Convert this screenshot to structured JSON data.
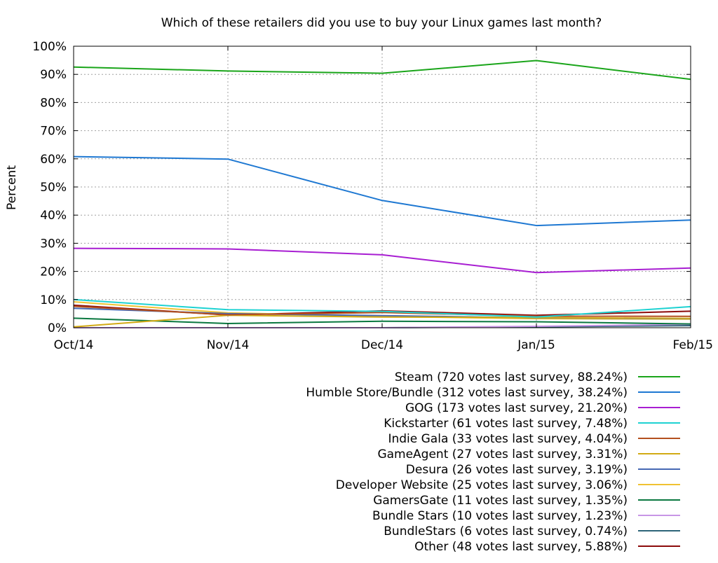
{
  "chart_data": {
    "type": "line",
    "title": "Which of these retailers did you use to buy your Linux games last month?",
    "xlabel": "",
    "ylabel": "Percent",
    "x": [
      "Oct/14",
      "Nov/14",
      "Dec/14",
      "Jan/15",
      "Feb/15"
    ],
    "ylim": [
      0,
      100
    ],
    "yticks": [
      "0%",
      "10%",
      "20%",
      "30%",
      "40%",
      "50%",
      "60%",
      "70%",
      "80%",
      "90%",
      "100%"
    ],
    "grid": true,
    "legend_position": "bottom-right",
    "series": [
      {
        "name": "Steam",
        "legend": "Steam (720 votes last survey, 88.24%)",
        "color": "#1aa51a",
        "values": [
          92.6,
          91.2,
          90.4,
          94.9,
          88.24
        ]
      },
      {
        "name": "Humble Store/Bundle",
        "legend": "Humble Store/Bundle (312 votes last survey, 38.24%)",
        "color": "#1e78d2",
        "values": [
          60.8,
          59.9,
          45.2,
          36.3,
          38.24
        ]
      },
      {
        "name": "GOG",
        "legend": "GOG (173 votes last survey, 21.20%)",
        "color": "#a81ed2",
        "values": [
          28.2,
          28.0,
          25.9,
          19.6,
          21.2
        ]
      },
      {
        "name": "Kickstarter",
        "legend": "Kickstarter (61 votes last survey, 7.48%)",
        "color": "#1ed2d2",
        "values": [
          10.0,
          6.4,
          5.8,
          3.8,
          7.48
        ]
      },
      {
        "name": "Indie Gala",
        "legend": "Indie Gala (33 votes last survey, 4.04%)",
        "color": "#b4501e",
        "values": [
          7.6,
          4.6,
          5.4,
          4.1,
          4.04
        ]
      },
      {
        "name": "GameAgent",
        "legend": "GameAgent (27 votes last survey, 3.31%)",
        "color": "#d2aa14",
        "values": [
          0.3,
          4.4,
          3.8,
          3.6,
          3.31
        ]
      },
      {
        "name": "Desura",
        "legend": "Desura (26 votes last survey, 3.19%)",
        "color": "#4668b4",
        "values": [
          6.9,
          5.0,
          4.3,
          3.5,
          3.19
        ]
      },
      {
        "name": "Developer Website",
        "legend": "Developer Website (25 votes last survey, 3.06%)",
        "color": "#f0c232",
        "values": [
          9.2,
          5.3,
          4.0,
          3.2,
          3.06
        ]
      },
      {
        "name": "GamersGate",
        "legend": "GamersGate (11 votes last survey, 1.35%)",
        "color": "#0a7840",
        "values": [
          3.4,
          1.5,
          2.3,
          2.1,
          1.35
        ]
      },
      {
        "name": "Bundle Stars",
        "legend": "Bundle Stars (10 votes last survey, 1.23%)",
        "color": "#c896e6",
        "values": [
          0,
          0,
          0,
          0.5,
          1.23
        ]
      },
      {
        "name": "BundleStars",
        "legend": "BundleStars (6 votes last survey, 0.74%)",
        "color": "#2d6478",
        "values": [
          0,
          0,
          0,
          0.3,
          0.74
        ]
      },
      {
        "name": "Other",
        "legend": "Other (48 votes last survey, 5.88%)",
        "color": "#8c0a0a",
        "values": [
          8.0,
          4.5,
          6.0,
          4.4,
          5.88
        ]
      }
    ]
  }
}
